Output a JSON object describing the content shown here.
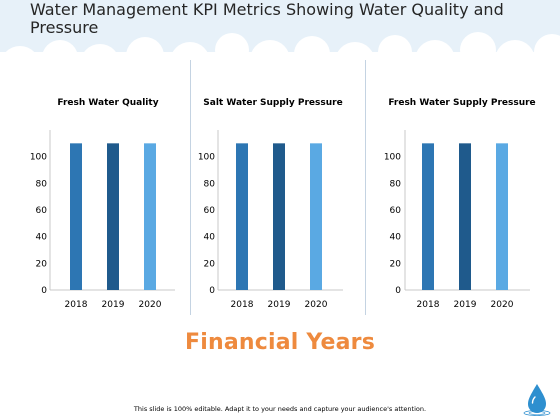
{
  "page": {
    "title": "Water Management KPI Metrics Showing Water Quality and Pressure",
    "footer_heading": "Financial Years",
    "footnote": "This slide is 100% editable. Adapt it to your needs and capture your audience's attention."
  },
  "colors": {
    "bar_2018": "#2d76b3",
    "bar_2019": "#1f5a8c",
    "bar_2020": "#5aa9e3",
    "axis": "#c8c8c8",
    "heading": "#ee8a3e",
    "drop": "#2e8fcf"
  },
  "icons": {
    "logo": "water-drop-icon"
  },
  "chart_data": [
    {
      "type": "bar",
      "title": "Fresh Water Quality",
      "categories": [
        "2018",
        "2019",
        "2020"
      ],
      "values": [
        110,
        110,
        110
      ],
      "yticks": [
        "0",
        "20",
        "40",
        "60",
        "80",
        "100"
      ],
      "ylim": [
        0,
        120
      ],
      "grid": false
    },
    {
      "type": "bar",
      "title": "Salt Water Supply Pressure",
      "categories": [
        "2018",
        "2019",
        "2020"
      ],
      "values": [
        110,
        110,
        110
      ],
      "yticks": [
        "0",
        "20",
        "40",
        "60",
        "80",
        "100"
      ],
      "ylim": [
        0,
        120
      ],
      "grid": false
    },
    {
      "type": "bar",
      "title": "Fresh Water Supply Pressure",
      "categories": [
        "2018",
        "2019",
        "2020"
      ],
      "values": [
        110,
        110,
        110
      ],
      "yticks": [
        "0",
        "20",
        "40",
        "60",
        "80",
        "100"
      ],
      "ylim": [
        0,
        120
      ],
      "grid": false
    }
  ]
}
